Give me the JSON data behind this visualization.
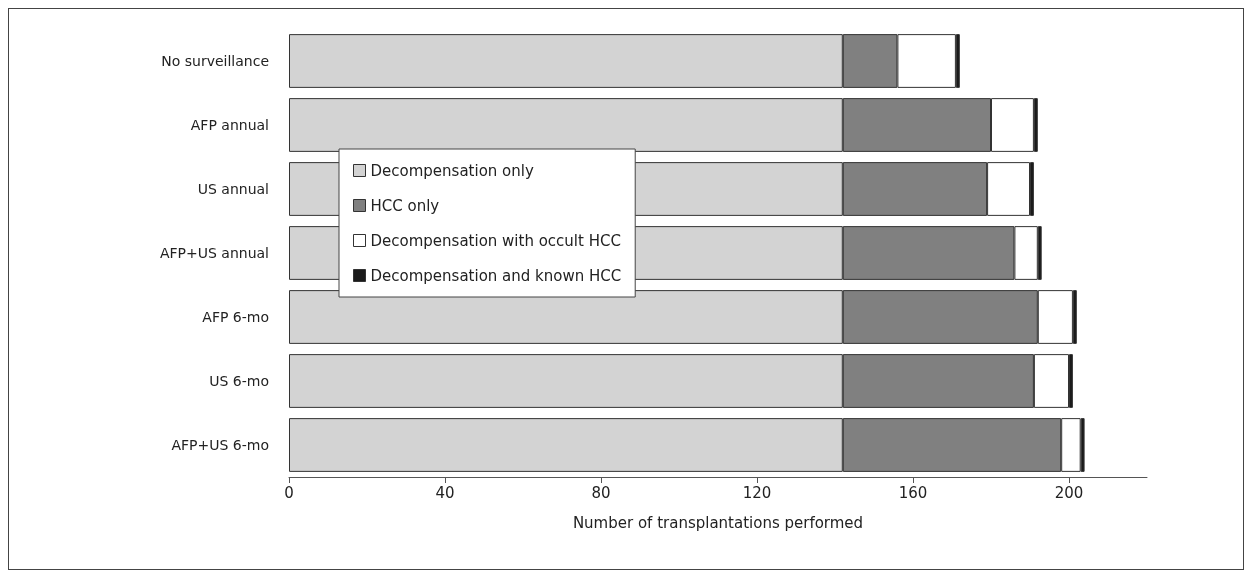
{
  "chart_data": {
    "type": "bar",
    "orientation": "horizontal",
    "stacked": true,
    "xlabel": "Number of transplantations performed",
    "categories": [
      "No surveillance",
      "AFP annual",
      "US annual",
      "AFP+US annual",
      "AFP 6-mo",
      "US 6-mo",
      "AFP+US 6-mo"
    ],
    "series": [
      {
        "name": "Decompensation only",
        "color": "#d3d3d3",
        "values": [
          142,
          142,
          142,
          142,
          142,
          142,
          142
        ]
      },
      {
        "name": "HCC only",
        "color": "#808080",
        "values": [
          14,
          38,
          37,
          44,
          50,
          49,
          56
        ]
      },
      {
        "name": "Decompensation with occult HCC",
        "color": "#ffffff",
        "values": [
          15,
          11,
          11,
          6,
          9,
          9,
          5
        ]
      },
      {
        "name": "Decompensation and known HCC",
        "color": "#1a1a1a",
        "values": [
          1,
          1,
          1,
          1,
          1,
          1,
          1
        ]
      }
    ],
    "xlim": [
      0,
      220
    ],
    "xticks": [
      0,
      40,
      80,
      120,
      160,
      200
    ],
    "grid": false,
    "legend": "left"
  }
}
